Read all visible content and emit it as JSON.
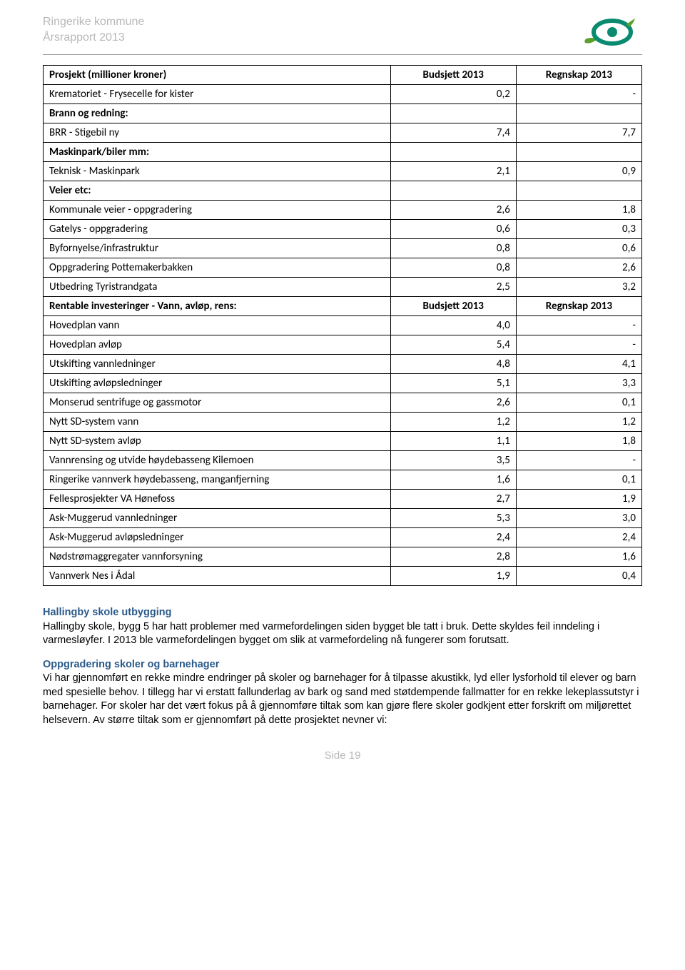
{
  "header": {
    "line1": "Ringerike kommune",
    "line2": "Årsrapport 2013"
  },
  "table": {
    "header": {
      "c0": "Prosjekt (millioner kroner)",
      "c1": "Budsjett 2013",
      "c2": "Regnskap 2013"
    },
    "rows": [
      {
        "label": "Krematoriet - Frysecelle for kister",
        "b": "0,2",
        "r": "-",
        "bold": false
      },
      {
        "label": "Brann og redning:",
        "b": "",
        "r": "",
        "bold": true
      },
      {
        "label": "BRR - Stigebil ny",
        "b": "7,4",
        "r": "7,7",
        "bold": false
      },
      {
        "label": "Maskinpark/biler mm:",
        "b": "",
        "r": "",
        "bold": true
      },
      {
        "label": "Teknisk - Maskinpark",
        "b": "2,1",
        "r": "0,9",
        "bold": false
      },
      {
        "label": "Veier etc:",
        "b": "",
        "r": "",
        "bold": true
      },
      {
        "label": "Kommunale veier - oppgradering",
        "b": "2,6",
        "r": "1,8",
        "bold": false
      },
      {
        "label": "Gatelys - oppgradering",
        "b": "0,6",
        "r": "0,3",
        "bold": false
      },
      {
        "label": "Byfornyelse/infrastruktur",
        "b": "0,8",
        "r": "0,6",
        "bold": false
      },
      {
        "label": "Oppgradering Pottemakerbakken",
        "b": "0,8",
        "r": "2,6",
        "bold": false
      },
      {
        "label": "Utbedring Tyristrandgata",
        "b": "2,5",
        "r": "3,2",
        "bold": false
      },
      {
        "label": "Rentable investeringer - Vann, avløp, rens:",
        "b": "Budsjett 2013",
        "r": "Regnskap 2013",
        "bold": true,
        "subheader": true
      },
      {
        "label": "Hovedplan vann",
        "b": "4,0",
        "r": "-",
        "bold": false
      },
      {
        "label": "Hovedplan avløp",
        "b": "5,4",
        "r": "-",
        "bold": false
      },
      {
        "label": "Utskifting vannledninger",
        "b": "4,8",
        "r": "4,1",
        "bold": false
      },
      {
        "label": "Utskifting avløpsledninger",
        "b": "5,1",
        "r": "3,3",
        "bold": false
      },
      {
        "label": "Monserud sentrifuge og gassmotor",
        "b": "2,6",
        "r": "0,1",
        "bold": false
      },
      {
        "label": "Nytt SD-system vann",
        "b": "1,2",
        "r": "1,2",
        "bold": false
      },
      {
        "label": "Nytt SD-system avløp",
        "b": "1,1",
        "r": "1,8",
        "bold": false
      },
      {
        "label": "Vannrensing og utvide høydebasseng Kilemoen",
        "b": "3,5",
        "r": "-",
        "bold": false
      },
      {
        "label": "Ringerike vannverk høydebasseng, manganfjerning",
        "b": "1,6",
        "r": "0,1",
        "bold": false
      },
      {
        "label": "Fellesprosjekter VA Hønefoss",
        "b": "2,7",
        "r": "1,9",
        "bold": false
      },
      {
        "label": "Ask-Muggerud vannledninger",
        "b": "5,3",
        "r": "3,0",
        "bold": false
      },
      {
        "label": "Ask-Muggerud avløpsledninger",
        "b": "2,4",
        "r": "2,4",
        "bold": false
      },
      {
        "label": "Nødstrømaggregater vannforsyning",
        "b": "2,8",
        "r": "1,6",
        "bold": false
      },
      {
        "label": "Vannverk Nes i Ådal",
        "b": "1,9",
        "r": "0,4",
        "bold": false
      }
    ]
  },
  "sections": [
    {
      "title": "Hallingby skole utbygging",
      "body": "Hallingby skole, bygg 5 har hatt problemer med varmefordelingen siden bygget ble tatt i bruk. Dette skyldes feil inndeling i varmesløyfer. I 2013 ble varmefordelingen bygget om slik at varmefordeling nå fungerer som forutsatt."
    },
    {
      "title": "Oppgradering skoler og barnehager",
      "body": "Vi har gjennomført en rekke mindre endringer på skoler og barnehager for å tilpasse akustikk, lyd eller lysforhold til elever og barn med spesielle behov. I tillegg har vi erstatt fallunderlag av bark og sand med støtdempende fallmatter for en rekke lekeplassutstyr i barnehager. For skoler har det vært fokus på å gjennomføre tiltak som kan gjøre flere skoler godkjent etter forskrift om miljørettet helsevern. Av større tiltak som er gjennomført på dette prosjektet nevner vi:"
    }
  ],
  "footer": "Side 19",
  "colors": {
    "muted": "#b8b8b8",
    "section_title": "#2a5a8a",
    "border": "#000000",
    "logo_green": "#5aa02c",
    "logo_teal": "#0a8a70"
  }
}
